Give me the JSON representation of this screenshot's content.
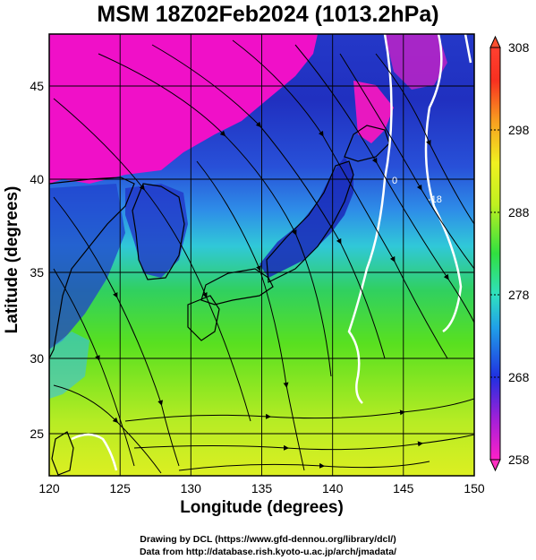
{
  "title": "MSM 18Z02Feb2024 (1013.2hPa)",
  "xlabel": "Longitude (degrees)",
  "ylabel": "Latitude  (degrees)",
  "x_ticks": [
    "120",
    "125",
    "130",
    "135",
    "140",
    "145",
    "150"
  ],
  "y_ticks": [
    "25",
    "30",
    "35",
    "40",
    "45"
  ],
  "colorbar_ticks": [
    "258",
    "268",
    "278",
    "288",
    "298",
    "308"
  ],
  "contour_labels": [
    "0",
    "-18"
  ],
  "credit_line1": "Drawing by DCL (https://www.gfd-dennou.org/library/dcl/)",
  "credit_line2": "Data from http://database.rish.kyoto-u.ac.jp/arch/jmadata/",
  "chart_data": {
    "type": "heatmap",
    "title": "MSM 18Z02Feb2024 (1013.2hPa)",
    "xlabel": "Longitude (degrees)",
    "ylabel": "Latitude  (degrees)",
    "xlim": [
      120,
      150
    ],
    "ylim": [
      22.4,
      47.6
    ],
    "x_ticks": [
      120,
      125,
      130,
      135,
      140,
      145,
      150
    ],
    "y_ticks": [
      25,
      30,
      35,
      40,
      45
    ],
    "colorbar": {
      "min": 258,
      "max": 308,
      "ticks": [
        258,
        268,
        278,
        288,
        298,
        308
      ]
    },
    "grid": true,
    "overlay": "streamlines",
    "colors": {
      "cold": "#ff00c0",
      "blue": "#2040e0",
      "cyan": "#30c8e0",
      "green": "#40e020",
      "yellow": "#d8f020",
      "warm": "#ff2020"
    }
  }
}
